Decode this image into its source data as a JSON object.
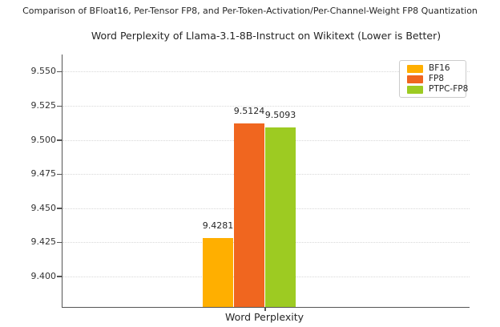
{
  "figure": {
    "suptitle": "Comparison of BFloat16, Per-Tensor FP8, and Per-Token-Activation/Per-Channel-Weight FP8 Quantization",
    "title": "Word Perplexity of Llama-3.1-8B-Instruct on Wikitext (Lower is Better)"
  },
  "chart_data": {
    "type": "bar",
    "title": "Word Perplexity of Llama-3.1-8B-Instruct on Wikitext (Lower is Better)",
    "suptitle": "Comparison of BFloat16, Per-Tensor FP8, and Per-Token-Activation/Per-Channel-Weight FP8 Quantization",
    "categories": [
      "Word Perplexity"
    ],
    "series": [
      {
        "name": "BF16",
        "values": [
          9.4281
        ],
        "value_label": "9.4281",
        "color": "#FFAF00"
      },
      {
        "name": "FP8",
        "values": [
          9.5124
        ],
        "value_label": "9.5124",
        "color": "#F0661F"
      },
      {
        "name": "PTPC-FP8",
        "values": [
          9.5093
        ],
        "value_label": "9.5093",
        "color": "#9DCB22"
      }
    ],
    "xlabel": "Word Perplexity",
    "ylabel": "",
    "ylim": [
      9.3771,
      9.5626
    ],
    "yticks": [
      9.4,
      9.425,
      9.45,
      9.475,
      9.5,
      9.525,
      9.55
    ],
    "ytick_labels": [
      "9.400",
      "9.425",
      "9.450",
      "9.475",
      "9.500",
      "9.525",
      "9.550"
    ],
    "grid": true,
    "grid_style": "dotted",
    "legend_position": "upper right",
    "legend_entries": [
      "BF16",
      "FP8",
      "PTPC-FP8"
    ]
  },
  "colors": {
    "background": "#ffffff",
    "spine": "#555555",
    "grid": "#d8d8d8",
    "text": "#262626",
    "tick_text": "#333333"
  }
}
